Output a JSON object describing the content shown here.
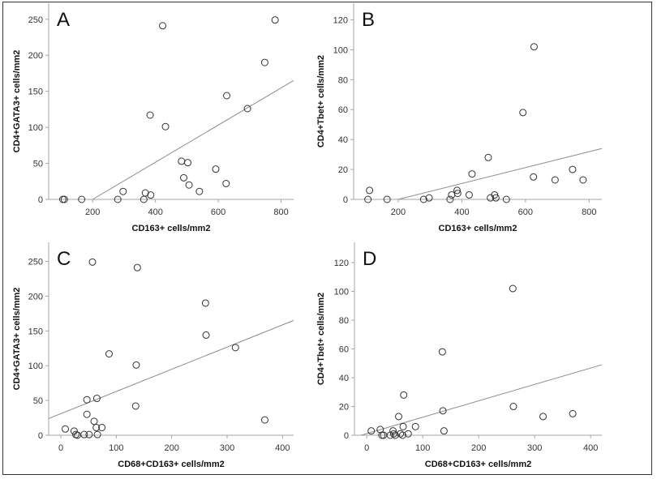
{
  "chart_data": [
    {
      "type": "scatter",
      "panel": "A",
      "xlabel": "CD163+ cells/mm2",
      "ylabel": "CD4+GATA3+ cells/mm2",
      "xlim": [
        60,
        840
      ],
      "ylim": [
        0,
        270
      ],
      "xticks": [
        200,
        400,
        600,
        800
      ],
      "yticks": [
        0,
        50,
        100,
        150,
        200,
        250
      ],
      "points": [
        [
          105,
          0
        ],
        [
          110,
          0
        ],
        [
          165,
          0
        ],
        [
          280,
          0
        ],
        [
          297,
          11
        ],
        [
          363,
          0
        ],
        [
          368,
          9
        ],
        [
          385,
          6
        ],
        [
          383,
          117
        ],
        [
          423,
          241
        ],
        [
          432,
          101
        ],
        [
          483,
          53
        ],
        [
          490,
          30
        ],
        [
          503,
          51
        ],
        [
          507,
          20
        ],
        [
          540,
          11
        ],
        [
          592,
          42
        ],
        [
          625,
          22
        ],
        [
          627,
          144
        ],
        [
          693,
          126
        ],
        [
          748,
          190
        ],
        [
          781,
          249
        ]
      ],
      "fit_line": [
        [
          200,
          0
        ],
        [
          840,
          165
        ]
      ]
    },
    {
      "type": "scatter",
      "panel": "B",
      "xlabel": "CD163+ cells/mm2",
      "ylabel": "CD4+Tbet+ cells/mm2",
      "xlim": [
        60,
        840
      ],
      "ylim": [
        0,
        130
      ],
      "xticks": [
        200,
        400,
        600,
        800
      ],
      "yticks": [
        0,
        20,
        40,
        60,
        80,
        100,
        120
      ],
      "points": [
        [
          105,
          0
        ],
        [
          110,
          6
        ],
        [
          165,
          0
        ],
        [
          280,
          0
        ],
        [
          297,
          1
        ],
        [
          363,
          0
        ],
        [
          368,
          3
        ],
        [
          385,
          6
        ],
        [
          387,
          4
        ],
        [
          423,
          3
        ],
        [
          432,
          17
        ],
        [
          483,
          28
        ],
        [
          490,
          1
        ],
        [
          503,
          3
        ],
        [
          507,
          1
        ],
        [
          540,
          0
        ],
        [
          592,
          58
        ],
        [
          625,
          15
        ],
        [
          627,
          102
        ],
        [
          693,
          13
        ],
        [
          748,
          20
        ],
        [
          781,
          13
        ]
      ],
      "fit_line": [
        [
          200,
          0
        ],
        [
          840,
          34
        ]
      ]
    },
    {
      "type": "scatter",
      "panel": "C",
      "xlabel": "CD68+CD163+ cells/mm2",
      "ylabel": "CD4+GATA3+ cells/mm2",
      "xlim": [
        -22,
        420
      ],
      "ylim": [
        0,
        275
      ],
      "xticks": [
        0,
        100,
        200,
        300,
        400
      ],
      "yticks": [
        0,
        50,
        100,
        150,
        200,
        250
      ],
      "points": [
        [
          8,
          9
        ],
        [
          24,
          6
        ],
        [
          27,
          1
        ],
        [
          30,
          0
        ],
        [
          42,
          1
        ],
        [
          47,
          51
        ],
        [
          47,
          30
        ],
        [
          51,
          1
        ],
        [
          57,
          249
        ],
        [
          60,
          20
        ],
        [
          64,
          11
        ],
        [
          65,
          53
        ],
        [
          66,
          1
        ],
        [
          74,
          11
        ],
        [
          87,
          117
        ],
        [
          135,
          42
        ],
        [
          136,
          101
        ],
        [
          138,
          241
        ],
        [
          261,
          190
        ],
        [
          262,
          144
        ],
        [
          315,
          126
        ],
        [
          368,
          22
        ]
      ],
      "fit_line": [
        [
          -22,
          24
        ],
        [
          420,
          165
        ]
      ]
    },
    {
      "type": "scatter",
      "panel": "D",
      "xlabel": "CD68+CD163+ cells/mm2",
      "ylabel": "CD4+Tbet+ cells/mm2",
      "xlim": [
        -22,
        420
      ],
      "ylim": [
        0,
        133
      ],
      "xticks": [
        0,
        100,
        200,
        300,
        400
      ],
      "yticks": [
        0,
        20,
        40,
        60,
        80,
        100,
        120
      ],
      "points": [
        [
          8,
          3
        ],
        [
          24,
          4
        ],
        [
          27,
          0
        ],
        [
          30,
          0
        ],
        [
          42,
          0
        ],
        [
          47,
          3
        ],
        [
          48,
          1
        ],
        [
          51,
          0
        ],
        [
          57,
          13
        ],
        [
          60,
          1
        ],
        [
          65,
          6
        ],
        [
          66,
          28
        ],
        [
          64,
          0
        ],
        [
          74,
          1
        ],
        [
          87,
          6
        ],
        [
          135,
          58
        ],
        [
          136,
          17
        ],
        [
          138,
          3
        ],
        [
          261,
          102
        ],
        [
          262,
          20
        ],
        [
          315,
          13
        ],
        [
          368,
          15
        ]
      ],
      "fit_line": [
        [
          -10,
          0
        ],
        [
          420,
          49
        ]
      ]
    }
  ],
  "colors": {
    "points": "#333333",
    "axis": "#a6a6a6",
    "fit": "#8c8c8c",
    "frame": "#333333"
  }
}
